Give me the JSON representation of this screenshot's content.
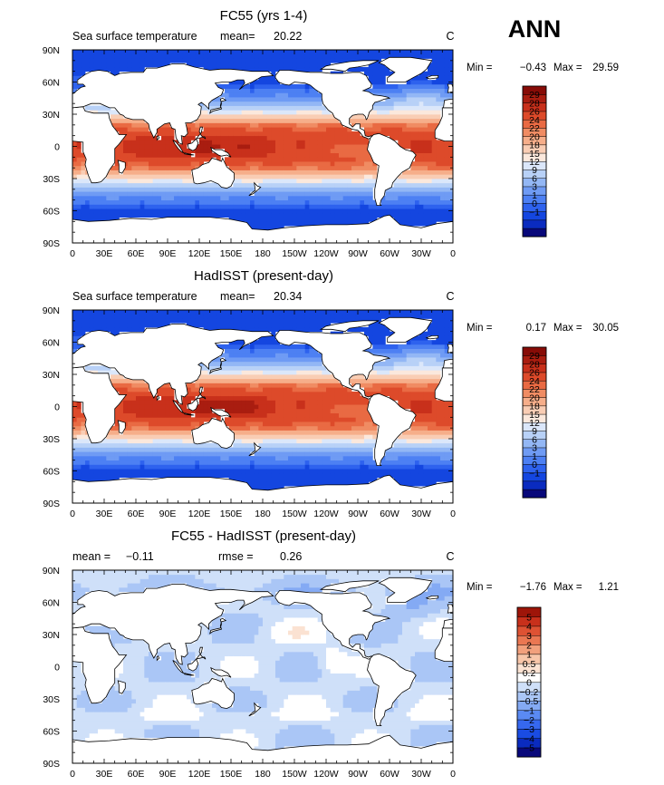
{
  "figure": {
    "season": "ANN"
  },
  "colors": {
    "sst_levels": [
      "#08087a",
      "#0a2bbf",
      "#1446e0",
      "#2e62ee",
      "#4d80f3",
      "#6f9bf4",
      "#93b7f5",
      "#b8d1f7",
      "#dbe7fa",
      "#fbe8dc",
      "#f9cdb4",
      "#f6ae8a",
      "#f08c63",
      "#e96a43",
      "#dd4a2a",
      "#c8301b",
      "#a91d10",
      "#870c07"
    ],
    "diff_levels": [
      "#08087a",
      "#0a2bbf",
      "#1a4ce3",
      "#3668ef",
      "#5a8af3",
      "#84aaf4",
      "#aac6f6",
      "#cfe0f9",
      "#ffffff",
      "#fbe2d2",
      "#f8c6a9",
      "#f2a07c",
      "#ea7752",
      "#de5233",
      "#c8301b",
      "#9e1509"
    ],
    "land": "#ffffff",
    "coast": "#000000"
  },
  "chart_data": [
    {
      "type": "heatmap",
      "id": "model",
      "title": "FC55 (yrs 1-4)",
      "variable": "Sea surface temperature",
      "mean_label": "mean=",
      "mean_value": "20.22",
      "units": "C",
      "min_label": "Min =",
      "min_value": "−0.43",
      "max_label": "Max =",
      "max_value": "29.59",
      "colorbar_labels": [
        "29",
        "28",
        "26",
        "24",
        "22",
        "20",
        "18",
        "15",
        "12",
        "9",
        "6",
        "3",
        "1",
        "0",
        "−1"
      ],
      "xticks": [
        "0",
        "30E",
        "60E",
        "90E",
        "120E",
        "150E",
        "180",
        "150W",
        "120W",
        "90W",
        "60W",
        "30W",
        "0"
      ],
      "yticks": [
        "90N",
        "60N",
        "30N",
        "0",
        "30S",
        "60S",
        "90S"
      ],
      "xlim": [
        0,
        360
      ],
      "ylim": [
        -90,
        90
      ]
    },
    {
      "type": "heatmap",
      "id": "obs",
      "title": "HadISST (present-day)",
      "variable": "Sea surface temperature",
      "mean_label": "mean=",
      "mean_value": "20.34",
      "units": "C",
      "min_label": "Min =",
      "min_value": "0.17",
      "max_label": "Max =",
      "max_value": "30.05",
      "colorbar_labels": [
        "29",
        "28",
        "26",
        "24",
        "22",
        "20",
        "18",
        "15",
        "12",
        "9",
        "6",
        "3",
        "1",
        "0",
        "−1"
      ],
      "xticks": [
        "0",
        "30E",
        "60E",
        "90E",
        "120E",
        "150E",
        "180",
        "150W",
        "120W",
        "90W",
        "60W",
        "30W",
        "0"
      ],
      "yticks": [
        "90N",
        "60N",
        "30N",
        "0",
        "30S",
        "60S",
        "90S"
      ],
      "xlim": [
        0,
        360
      ],
      "ylim": [
        -90,
        90
      ]
    },
    {
      "type": "heatmap",
      "id": "diff",
      "title": "FC55 - HadISST (present-day)",
      "mean_label": "mean =",
      "mean_value": "−0.11",
      "rmse_label": "rmse =",
      "rmse_value": "0.26",
      "units": "C",
      "min_label": "Min =",
      "min_value": "−1.76",
      "max_label": "Max =",
      "max_value": "1.21",
      "colorbar_labels": [
        "5",
        "4",
        "3",
        "2",
        "1",
        "0.5",
        "0.2",
        "0",
        "−0.2",
        "−0.5",
        "−1",
        "−2",
        "−3",
        "−4",
        "−5"
      ],
      "xticks": [
        "0",
        "30E",
        "60E",
        "90E",
        "120E",
        "150E",
        "180",
        "150W",
        "120W",
        "90W",
        "60W",
        "30W",
        "0"
      ],
      "yticks": [
        "90N",
        "60N",
        "30N",
        "0",
        "30S",
        "60S",
        "90S"
      ],
      "xlim": [
        0,
        360
      ],
      "ylim": [
        -90,
        90
      ]
    }
  ]
}
